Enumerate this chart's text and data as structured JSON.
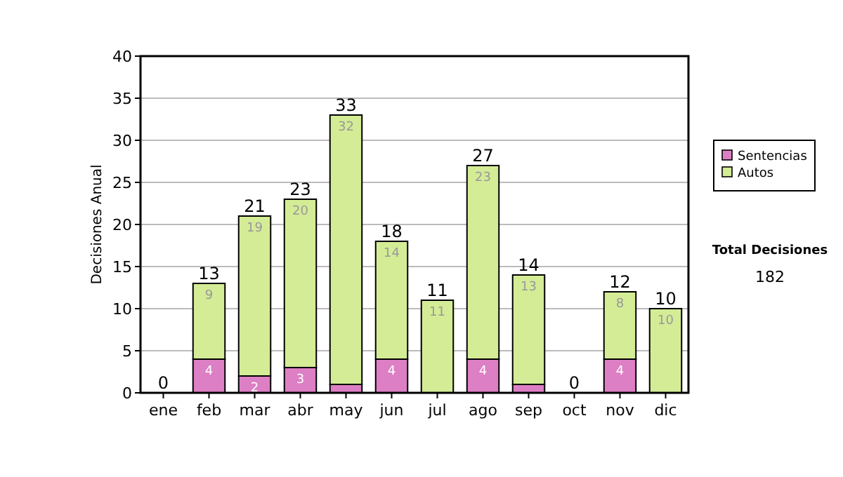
{
  "chart_data": {
    "type": "bar",
    "stacked": true,
    "ylabel": "Decisiones Anual",
    "categories": [
      "ene",
      "feb",
      "mar",
      "abr",
      "may",
      "jun",
      "jul",
      "ago",
      "sep",
      "oct",
      "nov",
      "dic"
    ],
    "series": [
      {
        "name": "Sentencias",
        "color": "#dd7fc4",
        "values": [
          0,
          4,
          2,
          3,
          1,
          4,
          0,
          4,
          1,
          0,
          4,
          0
        ],
        "value_labels": [
          null,
          "4",
          "2",
          "3",
          null,
          "4",
          null,
          "4",
          null,
          null,
          "4",
          null
        ]
      },
      {
        "name": "Autos",
        "color": "#d4ec96",
        "values": [
          0,
          9,
          19,
          20,
          32,
          14,
          11,
          23,
          13,
          0,
          8,
          10
        ],
        "value_labels": [
          null,
          "9",
          "19",
          "20",
          "32",
          "14",
          "11",
          "23",
          "13",
          null,
          "8",
          "10"
        ]
      }
    ],
    "totals": [
      "0",
      "13",
      "21",
      "23",
      "33",
      "18",
      "11",
      "27",
      "14",
      "0",
      "12",
      "10"
    ],
    "ylim": [
      0,
      40
    ],
    "yticks": [
      0,
      5,
      10,
      15,
      20,
      25,
      30,
      35,
      40
    ],
    "grid": "y",
    "legend": "right",
    "annotations": [
      "Total Decisiones",
      "182"
    ]
  }
}
